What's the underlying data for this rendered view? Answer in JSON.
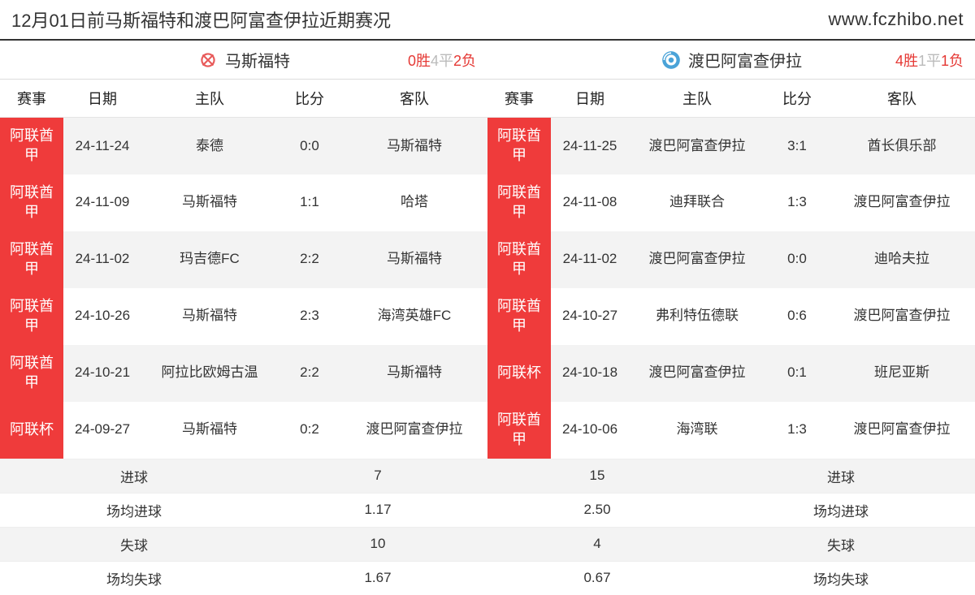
{
  "header": {
    "title": "12月01日前马斯福特和渡巴阿富查伊拉近期赛况",
    "url": "www.fczhibo.net"
  },
  "columns": {
    "comp": "赛事",
    "date": "日期",
    "home": "主队",
    "score": "比分",
    "away": "客队"
  },
  "left": {
    "team": "马斯福特",
    "icon_color": "#e85a5a",
    "record": {
      "w": "0胜",
      "d": "4平",
      "l": "2负"
    },
    "rows": [
      {
        "comp": "阿联酋甲",
        "date": "24-11-24",
        "home": "泰德",
        "score": "0:0",
        "away": "马斯福特"
      },
      {
        "comp": "阿联酋甲",
        "date": "24-11-09",
        "home": "马斯福特",
        "score": "1:1",
        "away": "哈塔"
      },
      {
        "comp": "阿联酋甲",
        "date": "24-11-02",
        "home": "玛吉德FC",
        "score": "2:2",
        "away": "马斯福特"
      },
      {
        "comp": "阿联酋甲",
        "date": "24-10-26",
        "home": "马斯福特",
        "score": "2:3",
        "away": "海湾英雄FC"
      },
      {
        "comp": "阿联酋甲",
        "date": "24-10-21",
        "home": "阿拉比欧姆古温",
        "score": "2:2",
        "away": "马斯福特"
      },
      {
        "comp": "阿联杯",
        "date": "24-09-27",
        "home": "马斯福特",
        "score": "0:2",
        "away": "渡巴阿富查伊拉"
      }
    ]
  },
  "right": {
    "team": "渡巴阿富查伊拉",
    "icon_color": "#4aa3d8",
    "record": {
      "w": "4胜",
      "d": "1平",
      "l": "1负"
    },
    "rows": [
      {
        "comp": "阿联酋甲",
        "date": "24-11-25",
        "home": "渡巴阿富查伊拉",
        "score": "3:1",
        "away": "酋长俱乐部"
      },
      {
        "comp": "阿联酋甲",
        "date": "24-11-08",
        "home": "迪拜联合",
        "score": "1:3",
        "away": "渡巴阿富查伊拉"
      },
      {
        "comp": "阿联酋甲",
        "date": "24-11-02",
        "home": "渡巴阿富查伊拉",
        "score": "0:0",
        "away": "迪哈夫拉"
      },
      {
        "comp": "阿联酋甲",
        "date": "24-10-27",
        "home": "弗利特伍德联",
        "score": "0:6",
        "away": "渡巴阿富查伊拉"
      },
      {
        "comp": "阿联杯",
        "date": "24-10-18",
        "home": "渡巴阿富查伊拉",
        "score": "0:1",
        "away": "班尼亚斯"
      },
      {
        "comp": "阿联酋甲",
        "date": "24-10-06",
        "home": "海湾联",
        "score": "1:3",
        "away": "渡巴阿富查伊拉"
      }
    ]
  },
  "stats": {
    "labels": {
      "goals": "进球",
      "avg_goals": "场均进球",
      "conceded": "失球",
      "avg_conceded": "场均失球"
    },
    "left": {
      "goals": "7",
      "avg_goals": "1.17",
      "conceded": "10",
      "avg_conceded": "1.67"
    },
    "right": {
      "goals": "15",
      "avg_goals": "2.50",
      "conceded": "4",
      "avg_conceded": "0.67"
    }
  },
  "colors": {
    "comp_bg": "#ef3b3b",
    "row_alt": "#f3f3f3",
    "border": "#e5e5e5"
  }
}
